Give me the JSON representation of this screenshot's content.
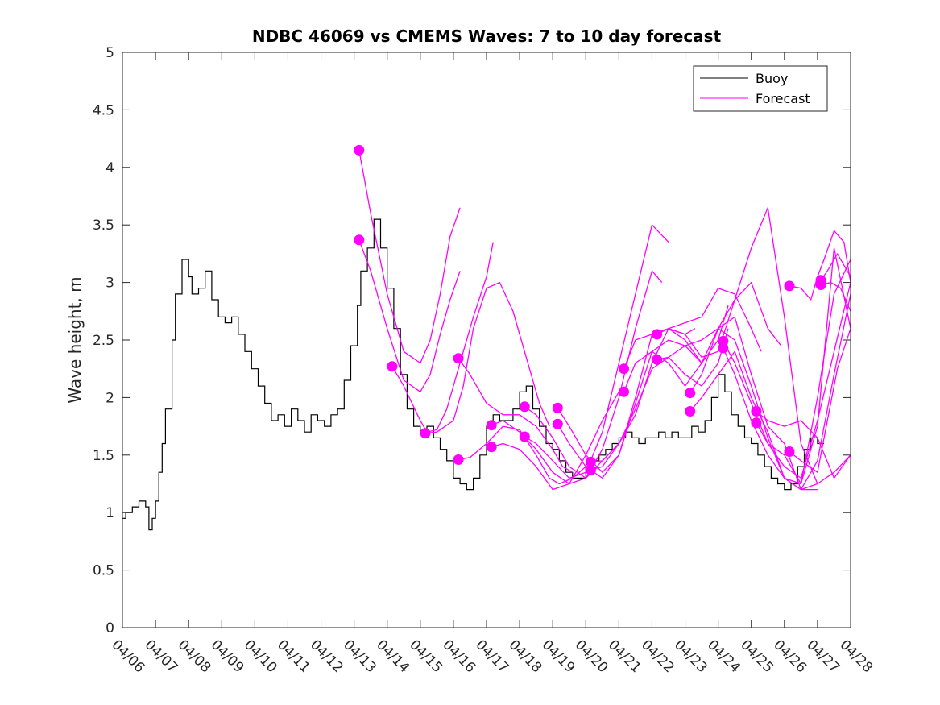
{
  "chart_data": {
    "type": "line",
    "title": "NDBC 46069 vs CMEMS Waves: 7 to 10 day forecast",
    "xlabel": "",
    "ylabel": "Wave height, m",
    "xlim": [
      0,
      22
    ],
    "ylim": [
      0,
      5
    ],
    "x_tick_labels": [
      "04/06",
      "04/07",
      "04/08",
      "04/09",
      "04/10",
      "04/11",
      "04/12",
      "04/13",
      "04/14",
      "04/15",
      "04/16",
      "04/17",
      "04/18",
      "04/19",
      "04/20",
      "04/21",
      "04/22",
      "04/23",
      "04/24",
      "04/25",
      "04/26",
      "04/27",
      "04/28"
    ],
    "y_ticks": [
      0,
      0.5,
      1,
      1.5,
      2,
      2.5,
      3,
      3.5,
      4,
      4.5,
      5
    ],
    "y_tick_labels": [
      "0",
      "0.5",
      "1",
      "1.5",
      "2",
      "2.5",
      "3",
      "3.5",
      "4",
      "4.5",
      "5"
    ],
    "legend": {
      "position": "top-right",
      "entries": [
        "Buoy",
        "Forecast"
      ]
    },
    "colors": {
      "buoy": "#000000",
      "forecast": "#ff00ff"
    },
    "buoy": {
      "name": "Buoy",
      "x": [
        0,
        0.1,
        0.3,
        0.5,
        0.7,
        0.8,
        0.9,
        1.0,
        1.1,
        1.2,
        1.3,
        1.5,
        1.6,
        1.8,
        2.0,
        2.1,
        2.3,
        2.5,
        2.7,
        2.9,
        3.1,
        3.3,
        3.5,
        3.7,
        3.9,
        4.1,
        4.3,
        4.5,
        4.7,
        4.9,
        5.1,
        5.3,
        5.5,
        5.7,
        5.9,
        6.1,
        6.3,
        6.5,
        6.7,
        6.9,
        7.1,
        7.2,
        7.4,
        7.6,
        7.8,
        8.0,
        8.2,
        8.4,
        8.6,
        8.8,
        9.0,
        9.2,
        9.4,
        9.6,
        9.8,
        10.0,
        10.2,
        10.4,
        10.6,
        10.8,
        11.0,
        11.2,
        11.4,
        11.6,
        11.8,
        12.0,
        12.2,
        12.4,
        12.6,
        12.8,
        13.0,
        13.2,
        13.4,
        13.6,
        13.8,
        14.0,
        14.2,
        14.4,
        14.6,
        14.8,
        15.0,
        15.2,
        15.4,
        15.6,
        15.8,
        16.0,
        16.2,
        16.4,
        16.6,
        16.8,
        17.0,
        17.2,
        17.4,
        17.6,
        17.8,
        18.0,
        18.2,
        18.4,
        18.6,
        18.8,
        19.0,
        19.2,
        19.4,
        19.6,
        19.8,
        20.0,
        20.2,
        20.4,
        20.6,
        20.8,
        21.0,
        21.2
      ],
      "y": [
        0.95,
        1.0,
        1.05,
        1.1,
        1.05,
        0.85,
        0.95,
        1.1,
        1.35,
        1.6,
        1.9,
        2.5,
        2.9,
        3.2,
        3.05,
        2.9,
        2.95,
        3.1,
        2.85,
        2.7,
        2.65,
        2.7,
        2.55,
        2.4,
        2.25,
        2.1,
        1.95,
        1.8,
        1.85,
        1.75,
        1.9,
        1.8,
        1.7,
        1.85,
        1.8,
        1.75,
        1.85,
        1.9,
        2.15,
        2.45,
        2.8,
        3.1,
        3.3,
        3.55,
        3.3,
        2.95,
        2.6,
        2.2,
        1.9,
        1.75,
        1.7,
        1.75,
        1.65,
        1.55,
        1.45,
        1.3,
        1.25,
        1.2,
        1.3,
        1.5,
        1.75,
        1.85,
        1.8,
        1.8,
        1.9,
        2.05,
        2.1,
        1.9,
        1.75,
        1.6,
        1.55,
        1.45,
        1.35,
        1.3,
        1.3,
        1.4,
        1.45,
        1.5,
        1.55,
        1.6,
        1.65,
        1.7,
        1.65,
        1.6,
        1.65,
        1.65,
        1.7,
        1.65,
        1.7,
        1.65,
        1.65,
        1.75,
        1.7,
        1.8,
        2.0,
        2.2,
        2.05,
        1.85,
        1.75,
        1.65,
        1.6,
        1.5,
        1.4,
        1.3,
        1.25,
        1.2,
        1.25,
        1.4,
        1.55,
        1.65,
        1.6,
        1.6
      ]
    },
    "forecast": {
      "name": "Forecast",
      "series": [
        {
          "x": [
            7.15,
            7.5,
            8.0,
            8.5,
            9.0,
            9.3,
            9.6,
            9.9,
            10.2
          ],
          "y": [
            4.15,
            3.6,
            2.9,
            2.4,
            2.3,
            2.5,
            2.9,
            3.4,
            3.65
          ]
        },
        {
          "x": [
            7.15,
            7.5,
            8.0,
            8.5,
            9.0,
            9.3,
            9.6,
            9.9,
            10.2
          ],
          "y": [
            3.37,
            3.1,
            2.6,
            2.15,
            2.05,
            2.2,
            2.55,
            2.85,
            3.1
          ]
        },
        {
          "x": [
            8.15,
            8.5,
            9.0,
            9.2,
            9.5,
            9.8,
            10.2,
            10.6,
            11.0,
            11.2
          ],
          "y": [
            2.27,
            2.1,
            1.8,
            1.7,
            1.72,
            1.9,
            2.3,
            2.7,
            3.05,
            3.35
          ]
        },
        {
          "x": [
            9.15,
            9.5,
            10.0,
            10.3,
            10.6,
            11.0,
            11.4,
            11.8,
            12.2,
            12.6,
            12.9
          ],
          "y": [
            1.69,
            1.7,
            1.8,
            2.1,
            2.6,
            2.95,
            3.0,
            2.75,
            2.35,
            1.95,
            1.75
          ]
        },
        {
          "x": [
            10.15,
            10.5,
            11.0,
            11.5,
            12.0,
            12.5,
            13.0,
            13.3,
            13.6
          ],
          "y": [
            2.34,
            2.2,
            1.95,
            1.85,
            1.85,
            1.75,
            1.55,
            1.4,
            1.35
          ]
        },
        {
          "x": [
            10.15,
            10.5,
            11.0,
            11.5,
            12.0,
            12.5,
            12.9,
            13.2,
            13.6,
            14.0
          ],
          "y": [
            1.46,
            1.48,
            1.6,
            1.75,
            1.72,
            1.5,
            1.3,
            1.25,
            1.3,
            1.4
          ]
        },
        {
          "x": [
            11.15,
            11.5,
            12.0,
            12.5,
            13.0,
            13.5,
            14.0,
            14.5,
            15.0
          ],
          "y": [
            1.76,
            1.8,
            1.7,
            1.55,
            1.35,
            1.25,
            1.3,
            1.45,
            1.6
          ]
        },
        {
          "x": [
            11.15,
            11.5,
            12.0,
            12.5,
            13.0,
            13.5,
            14.0,
            14.5,
            15.0
          ],
          "y": [
            1.57,
            1.6,
            1.55,
            1.4,
            1.2,
            1.25,
            1.5,
            1.8,
            2.05
          ]
        },
        {
          "x": [
            12.15,
            12.5,
            13.0,
            13.5,
            14.0,
            14.5,
            15.0,
            15.5,
            16.0,
            16.3
          ],
          "y": [
            1.92,
            1.85,
            1.65,
            1.4,
            1.3,
            1.55,
            2.0,
            2.6,
            3.1,
            3.0
          ]
        },
        {
          "x": [
            12.15,
            12.5,
            13.0,
            13.5,
            14.0,
            14.5,
            15.0,
            15.5,
            16.0,
            16.5
          ],
          "y": [
            1.66,
            1.6,
            1.45,
            1.3,
            1.35,
            1.7,
            2.3,
            2.9,
            3.5,
            3.35
          ]
        },
        {
          "x": [
            13.15,
            13.5,
            14.0,
            14.5,
            15.0,
            15.5,
            16.0,
            16.5,
            17.0,
            17.3
          ],
          "y": [
            1.91,
            1.75,
            1.5,
            1.35,
            1.5,
            2.0,
            2.55,
            2.6,
            2.55,
            2.6
          ]
        },
        {
          "x": [
            13.15,
            13.5,
            14.0,
            14.5,
            15.0,
            15.5,
            16.0,
            16.5,
            17.0,
            17.5
          ],
          "y": [
            1.77,
            1.6,
            1.4,
            1.3,
            1.5,
            1.95,
            2.4,
            2.5,
            2.45,
            2.3
          ]
        },
        {
          "x": [
            14.15,
            14.5,
            15.0,
            15.5,
            16.0,
            16.5,
            17.0,
            17.5,
            18.0,
            18.3
          ],
          "y": [
            1.44,
            1.45,
            1.6,
            1.85,
            2.3,
            2.6,
            2.5,
            2.3,
            2.5,
            2.8
          ]
        },
        {
          "x": [
            14.15,
            14.5,
            15.0,
            15.5,
            16.0,
            16.5,
            17.0,
            17.5,
            18.0,
            18.3
          ],
          "y": [
            1.37,
            1.4,
            1.6,
            1.9,
            2.25,
            2.35,
            2.2,
            2.1,
            2.3,
            2.6
          ]
        },
        {
          "x": [
            15.15,
            15.5,
            16.0,
            16.5,
            17.0,
            17.5,
            18.0,
            18.5,
            19.0,
            19.3
          ],
          "y": [
            2.25,
            2.5,
            2.55,
            2.6,
            2.65,
            2.7,
            2.95,
            2.9,
            2.6,
            2.4
          ]
        },
        {
          "x": [
            15.15,
            15.5,
            16.0,
            16.5,
            17.0,
            17.5,
            18.0,
            18.5,
            19.0,
            19.5,
            19.9
          ],
          "y": [
            2.05,
            2.3,
            2.4,
            2.3,
            2.1,
            2.3,
            2.6,
            2.85,
            3.0,
            2.6,
            2.45
          ]
        },
        {
          "x": [
            16.15,
            16.5,
            17.0,
            17.5,
            18.0,
            18.5,
            19.0,
            19.5,
            20.0,
            20.5,
            21.0
          ],
          "y": [
            2.55,
            2.6,
            2.55,
            2.35,
            2.4,
            2.85,
            3.3,
            3.65,
            2.7,
            1.6,
            1.25
          ]
        },
        {
          "x": [
            16.15,
            16.5,
            17.0,
            17.5,
            18.0,
            18.5,
            19.0,
            19.5,
            20.0,
            20.5,
            21.0
          ],
          "y": [
            2.33,
            2.35,
            2.45,
            2.5,
            2.6,
            2.5,
            2.1,
            1.65,
            1.3,
            1.2,
            1.2
          ]
        },
        {
          "x": [
            17.15,
            17.5,
            18.0,
            18.5,
            19.0,
            19.5,
            20.0,
            20.5,
            21.0,
            21.5,
            22.0
          ],
          "y": [
            2.04,
            2.2,
            2.6,
            2.7,
            2.2,
            1.75,
            1.6,
            1.2,
            1.25,
            1.35,
            1.5
          ]
        },
        {
          "x": [
            17.15,
            17.5,
            18.0,
            18.5,
            19.0,
            19.5,
            20.0,
            20.5,
            21.0,
            21.5,
            22.0
          ],
          "y": [
            1.88,
            2.0,
            2.2,
            2.4,
            2.0,
            1.7,
            1.3,
            1.25,
            1.75,
            3.3,
            2.6
          ]
        },
        {
          "x": [
            18.15,
            18.5,
            19.0,
            19.5,
            20.0,
            20.5,
            21.0,
            21.5,
            22.0
          ],
          "y": [
            2.49,
            2.3,
            1.95,
            1.6,
            1.4,
            1.3,
            1.8,
            2.4,
            3.0
          ]
        },
        {
          "x": [
            18.15,
            18.5,
            19.0,
            19.5,
            20.0,
            20.5,
            21.0,
            21.5,
            22.0
          ],
          "y": [
            2.43,
            2.2,
            1.8,
            1.5,
            1.3,
            1.2,
            1.45,
            2.2,
            2.9
          ]
        },
        {
          "x": [
            19.15,
            19.5,
            20.0,
            20.5,
            21.0,
            21.5,
            22.0
          ],
          "y": [
            1.88,
            1.8,
            1.75,
            1.8,
            1.65,
            1.3,
            1.5
          ]
        },
        {
          "x": [
            19.15,
            19.5,
            20.0,
            20.5,
            21.0,
            21.5,
            22.0
          ],
          "y": [
            1.78,
            1.6,
            1.5,
            1.25,
            2.0,
            2.9,
            3.2
          ]
        },
        {
          "x": [
            20.15,
            20.5,
            20.8,
            21.0,
            21.2,
            21.5,
            21.8,
            22.0
          ],
          "y": [
            2.97,
            2.95,
            2.85,
            3.05,
            3.2,
            3.45,
            3.35,
            3.0
          ]
        },
        {
          "x": [
            20.15,
            20.5,
            21.0,
            21.3,
            21.6,
            22.0
          ],
          "y": [
            1.53,
            1.45,
            1.35,
            1.8,
            2.25,
            2.6
          ]
        },
        {
          "x": [
            21.1,
            21.3,
            21.6,
            22.0
          ],
          "y": [
            3.02,
            3.1,
            3.25,
            3.05
          ]
        },
        {
          "x": [
            21.1,
            21.4,
            21.7,
            22.0
          ],
          "y": [
            2.98,
            3.0,
            2.95,
            2.75
          ]
        }
      ],
      "markers": [
        {
          "x": 7.15,
          "y": 4.15
        },
        {
          "x": 7.15,
          "y": 3.37
        },
        {
          "x": 8.15,
          "y": 2.27
        },
        {
          "x": 9.15,
          "y": 1.69
        },
        {
          "x": 10.15,
          "y": 2.34
        },
        {
          "x": 10.15,
          "y": 1.46
        },
        {
          "x": 11.15,
          "y": 1.76
        },
        {
          "x": 11.15,
          "y": 1.57
        },
        {
          "x": 12.15,
          "y": 1.92
        },
        {
          "x": 12.15,
          "y": 1.66
        },
        {
          "x": 13.15,
          "y": 1.91
        },
        {
          "x": 13.15,
          "y": 1.77
        },
        {
          "x": 14.15,
          "y": 1.44
        },
        {
          "x": 14.15,
          "y": 1.37
        },
        {
          "x": 15.15,
          "y": 2.25
        },
        {
          "x": 15.15,
          "y": 2.05
        },
        {
          "x": 16.15,
          "y": 2.55
        },
        {
          "x": 16.15,
          "y": 2.33
        },
        {
          "x": 17.15,
          "y": 2.04
        },
        {
          "x": 17.15,
          "y": 1.88
        },
        {
          "x": 18.15,
          "y": 2.49
        },
        {
          "x": 18.15,
          "y": 2.43
        },
        {
          "x": 19.15,
          "y": 1.88
        },
        {
          "x": 19.15,
          "y": 1.78
        },
        {
          "x": 20.15,
          "y": 2.97
        },
        {
          "x": 20.15,
          "y": 1.53
        },
        {
          "x": 21.1,
          "y": 3.02
        },
        {
          "x": 21.1,
          "y": 2.98
        }
      ]
    }
  }
}
